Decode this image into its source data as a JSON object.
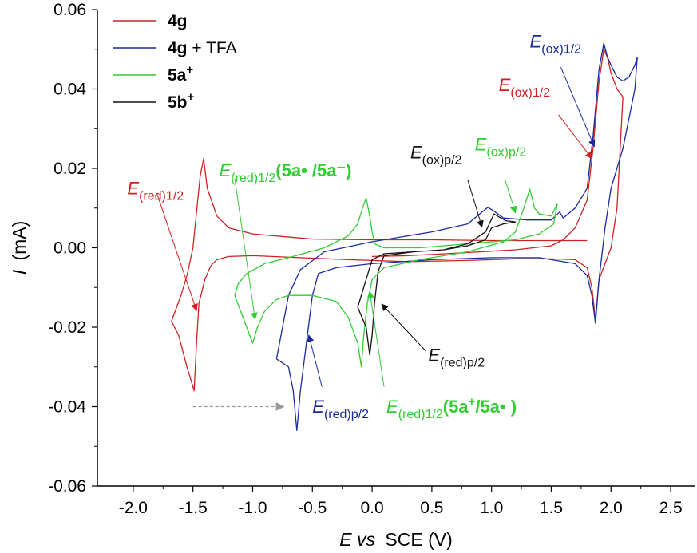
{
  "chart_data": {
    "type": "line",
    "xlabel": {
      "italic": "E vs",
      "normal": "SCE (V)"
    },
    "ylabel": {
      "italic": "I",
      "normal": "(mA)"
    },
    "xlim": [
      -2.3,
      2.7
    ],
    "ylim": [
      -0.06,
      0.06
    ],
    "xticks": [
      -2.0,
      -1.5,
      -1.0,
      -0.5,
      0.0,
      0.5,
      1.0,
      1.5,
      2.0,
      2.5
    ],
    "xtick_labels": [
      "-2.0",
      "-1.5",
      "-1.0",
      "-0.5",
      "0.0",
      "0.5",
      "1.0",
      "1.5",
      "2.0",
      "2.5"
    ],
    "yticks": [
      -0.06,
      -0.04,
      -0.02,
      0.0,
      0.02,
      0.04,
      0.06
    ],
    "ytick_labels": [
      "-0.06",
      "-0.04",
      "-0.02",
      "0.00",
      "0.02",
      "0.04",
      "0.06"
    ],
    "legend_position": "top-left",
    "series": [
      {
        "name": "4g",
        "legend": {
          "main": "4g",
          "sup": "",
          "suffix": ""
        },
        "color": "#cc2222",
        "points": [
          [
            0.0,
            -0.0022
          ],
          [
            0.3,
            -0.002
          ],
          [
            0.8,
            -0.0012
          ],
          [
            1.2,
            -0.0005
          ],
          [
            1.5,
            0.0005
          ],
          [
            1.6,
            0.002
          ],
          [
            1.7,
            0.005
          ],
          [
            1.8,
            0.012
          ],
          [
            1.85,
            0.025
          ],
          [
            1.9,
            0.042
          ],
          [
            1.94,
            0.05
          ],
          [
            1.97,
            0.048
          ],
          [
            2.0,
            0.044
          ],
          [
            2.05,
            0.04
          ],
          [
            2.1,
            0.038
          ],
          [
            2.1,
            0.038
          ],
          [
            2.05,
            0.01
          ],
          [
            2.0,
            0.0
          ],
          [
            1.95,
            -0.004
          ],
          [
            1.9,
            -0.008
          ],
          [
            1.87,
            -0.018
          ],
          [
            1.84,
            -0.01
          ],
          [
            1.8,
            -0.005
          ],
          [
            1.7,
            -0.003
          ],
          [
            1.5,
            -0.0028
          ],
          [
            1.2,
            -0.0028
          ],
          [
            0.8,
            -0.0032
          ],
          [
            0.3,
            -0.0035
          ],
          [
            -0.2,
            -0.003
          ],
          [
            -0.6,
            -0.0025
          ],
          [
            -1.0,
            -0.002
          ],
          [
            -1.2,
            -0.0022
          ],
          [
            -1.3,
            -0.003
          ],
          [
            -1.35,
            -0.0045
          ],
          [
            -1.4,
            -0.008
          ],
          [
            -1.45,
            -0.014
          ],
          [
            -1.47,
            -0.024
          ],
          [
            -1.49,
            -0.036
          ],
          [
            -1.55,
            -0.03
          ],
          [
            -1.62,
            -0.022
          ],
          [
            -1.68,
            -0.0185
          ],
          [
            -1.6,
            -0.012
          ],
          [
            -1.55,
            -0.007
          ],
          [
            -1.5,
            0.0
          ],
          [
            -1.47,
            0.009
          ],
          [
            -1.44,
            0.018
          ],
          [
            -1.41,
            0.0225
          ],
          [
            -1.38,
            0.015
          ],
          [
            -1.3,
            0.008
          ],
          [
            -1.2,
            0.005
          ],
          [
            -1.0,
            0.0035
          ],
          [
            -0.5,
            0.0022
          ],
          [
            0.0,
            0.002
          ],
          [
            0.5,
            0.002
          ],
          [
            1.0,
            0.0018
          ],
          [
            1.5,
            0.0018
          ],
          [
            1.8,
            0.0018
          ]
        ]
      },
      {
        "name": "4g + TFA",
        "legend": {
          "main": "4g",
          "sup": "",
          "suffix": " + TFA"
        },
        "color": "#1a2aa0",
        "points": [
          [
            -0.8,
            -0.028
          ],
          [
            -0.75,
            -0.02
          ],
          [
            -0.7,
            -0.012
          ],
          [
            -0.6,
            -0.0055
          ],
          [
            -0.4,
            -0.001
          ],
          [
            0.0,
            0.0015
          ],
          [
            0.5,
            0.004
          ],
          [
            0.8,
            0.006
          ],
          [
            0.9,
            0.0085
          ],
          [
            0.97,
            0.0102
          ],
          [
            1.03,
            0.009
          ],
          [
            1.1,
            0.0075
          ],
          [
            1.3,
            0.007
          ],
          [
            1.5,
            0.007
          ],
          [
            1.57,
            0.009
          ],
          [
            1.6,
            0.0075
          ],
          [
            1.7,
            0.01
          ],
          [
            1.8,
            0.015
          ],
          [
            1.85,
            0.028
          ],
          [
            1.9,
            0.045
          ],
          [
            1.94,
            0.0515
          ],
          [
            1.97,
            0.048
          ],
          [
            2.0,
            0.046
          ],
          [
            2.05,
            0.043
          ],
          [
            2.1,
            0.042
          ],
          [
            2.15,
            0.043
          ],
          [
            2.2,
            0.046
          ],
          [
            2.22,
            0.048
          ],
          [
            2.2,
            0.04
          ],
          [
            2.1,
            0.025
          ],
          [
            2.0,
            0.015
          ],
          [
            1.95,
            0.005
          ],
          [
            1.9,
            -0.008
          ],
          [
            1.87,
            -0.019
          ],
          [
            1.84,
            -0.012
          ],
          [
            1.8,
            -0.007
          ],
          [
            1.7,
            -0.004
          ],
          [
            1.4,
            -0.0025
          ],
          [
            1.0,
            -0.0025
          ],
          [
            0.5,
            -0.003
          ],
          [
            0.0,
            -0.004
          ],
          [
            -0.3,
            -0.005
          ],
          [
            -0.45,
            -0.0065
          ],
          [
            -0.5,
            -0.012
          ],
          [
            -0.55,
            -0.024
          ],
          [
            -0.6,
            -0.036
          ],
          [
            -0.63,
            -0.046
          ],
          [
            -0.66,
            -0.036
          ],
          [
            -0.7,
            -0.03
          ],
          [
            -0.75,
            -0.029
          ],
          [
            -0.8,
            -0.028
          ]
        ]
      },
      {
        "name": "5a+",
        "legend": {
          "main": "5a",
          "sup": "+",
          "suffix": ""
        },
        "color": "#33cc33",
        "points": [
          [
            -1.15,
            -0.012
          ],
          [
            -1.1,
            -0.016
          ],
          [
            -1.05,
            -0.02
          ],
          [
            -1.0,
            -0.024
          ],
          [
            -0.96,
            -0.02
          ],
          [
            -0.9,
            -0.016
          ],
          [
            -0.8,
            -0.013
          ],
          [
            -0.7,
            -0.012
          ],
          [
            -0.5,
            -0.012
          ],
          [
            -0.3,
            -0.0135
          ],
          [
            -0.2,
            -0.0175
          ],
          [
            -0.12,
            -0.024
          ],
          [
            -0.09,
            -0.03
          ],
          [
            -0.07,
            -0.022
          ],
          [
            -0.04,
            -0.014
          ],
          [
            0.0,
            -0.008
          ],
          [
            0.1,
            -0.005
          ],
          [
            0.4,
            -0.003
          ],
          [
            0.8,
            -0.001
          ],
          [
            1.1,
            0.0015
          ],
          [
            1.2,
            0.004
          ],
          [
            1.27,
            0.01
          ],
          [
            1.32,
            0.0148
          ],
          [
            1.36,
            0.01
          ],
          [
            1.4,
            0.0085
          ],
          [
            1.5,
            0.008
          ],
          [
            1.55,
            0.011
          ],
          [
            1.52,
            0.006
          ],
          [
            1.4,
            0.0035
          ],
          [
            1.2,
            0.002
          ],
          [
            0.8,
            0.001
          ],
          [
            0.4,
            0.0
          ],
          [
            0.1,
            0.0
          ],
          [
            0.02,
            0.001
          ],
          [
            0.0,
            0.004
          ],
          [
            -0.02,
            0.008
          ],
          [
            -0.05,
            0.0125
          ],
          [
            -0.08,
            0.01
          ],
          [
            -0.12,
            0.006
          ],
          [
            -0.2,
            0.003
          ],
          [
            -0.4,
            0.0
          ],
          [
            -0.7,
            -0.0025
          ],
          [
            -0.9,
            -0.004
          ],
          [
            -1.05,
            -0.0065
          ],
          [
            -1.12,
            -0.009
          ],
          [
            -1.15,
            -0.012
          ]
        ]
      },
      {
        "name": "5b+",
        "legend": {
          "main": "5b",
          "sup": "+",
          "suffix": ""
        },
        "color": "#111111",
        "points": [
          [
            0.35,
            -0.001
          ],
          [
            0.6,
            -0.0005
          ],
          [
            0.8,
            0.001
          ],
          [
            0.95,
            0.004
          ],
          [
            1.02,
            0.0085
          ],
          [
            1.06,
            0.0078
          ],
          [
            1.12,
            0.0068
          ],
          [
            1.2,
            0.0065
          ],
          [
            1.1,
            0.006
          ],
          [
            1.0,
            0.005
          ],
          [
            0.95,
            0.002
          ],
          [
            0.8,
            0.0005
          ],
          [
            0.6,
            -0.0005
          ],
          [
            0.35,
            -0.001
          ],
          [
            0.1,
            -0.002
          ],
          [
            0.05,
            -0.006
          ],
          [
            0.02,
            -0.014
          ],
          [
            0.0,
            -0.022
          ],
          [
            -0.02,
            -0.027
          ],
          [
            -0.05,
            -0.02
          ],
          [
            -0.12,
            -0.015
          ],
          [
            -0.05,
            -0.008
          ],
          [
            0.0,
            -0.003
          ],
          [
            0.1,
            -0.0015
          ],
          [
            0.35,
            -0.001
          ]
        ]
      }
    ],
    "annotations": [
      {
        "name": "annotation-ered12-4g",
        "color": "#cc2222",
        "base": "E",
        "sub": "(red)1/2",
        "extra": "",
        "extra_sup": "",
        "extra_tail": "",
        "text_at": [
          -2.05,
          0.0135
        ],
        "arrow_from": [
          -1.8,
          0.0135
        ],
        "arrow_to": [
          -1.47,
          -0.0158
        ]
      },
      {
        "name": "annotation-ered12-5a-radical",
        "color": "#33cc33",
        "base": "E",
        "sub": "(red)1/2",
        "extra": "(5a• /5a⁻)",
        "extra_sup": "",
        "extra_tail": "",
        "text_at": [
          -1.28,
          0.018
        ],
        "arrow_from": [
          -1.15,
          0.0175
        ],
        "arrow_to": [
          -0.98,
          -0.018
        ]
      },
      {
        "name": "annotation-ered12-5a-cation",
        "color": "#33cc33",
        "base": "E",
        "sub": "(red)1/2",
        "extra": "(5a",
        "extra_sup": "+",
        "extra_tail": "/5a• )",
        "text_at": [
          0.12,
          -0.0415
        ],
        "arrow_from": [
          0.1,
          -0.035
        ],
        "arrow_to": [
          -0.02,
          -0.011
        ]
      },
      {
        "name": "annotation-eredp2-4g-tfa",
        "color": "#1a2aa0",
        "base": "E",
        "sub": "(red)p/2",
        "extra": "",
        "extra_sup": "",
        "extra_tail": "",
        "text_at": [
          -0.5,
          -0.0415
        ],
        "arrow_from": [
          -0.42,
          -0.035
        ],
        "arrow_to": [
          -0.53,
          -0.022
        ]
      },
      {
        "name": "annotation-eredp2-5b",
        "color": "#111111",
        "base": "E",
        "sub": "(red)p/2",
        "extra": "",
        "extra_sup": "",
        "extra_tail": "",
        "text_at": [
          0.47,
          -0.0285
        ],
        "arrow_from": [
          0.45,
          -0.026
        ],
        "arrow_to": [
          0.08,
          -0.0142
        ]
      },
      {
        "name": "annotation-eoxp2-5b",
        "color": "#111111",
        "base": "E",
        "sub": "(ox)p/2",
        "extra": "",
        "extra_sup": "",
        "extra_tail": "",
        "text_at": [
          0.32,
          0.0225
        ],
        "arrow_from": [
          0.8,
          0.0172
        ],
        "arrow_to": [
          0.92,
          0.0052
        ]
      },
      {
        "name": "annotation-eoxp2-5a",
        "color": "#33cc33",
        "base": "E",
        "sub": "(ox)p/2",
        "extra": "",
        "extra_sup": "",
        "extra_tail": "",
        "text_at": [
          0.86,
          0.0245
        ],
        "arrow_from": [
          1.11,
          0.0175
        ],
        "arrow_to": [
          1.2,
          0.0088
        ]
      },
      {
        "name": "annotation-eox12-4g",
        "color": "#cc2222",
        "base": "E",
        "sub": "(ox)1/2",
        "extra": "",
        "extra_sup": "",
        "extra_tail": "",
        "text_at": [
          1.06,
          0.0395
        ],
        "arrow_from": [
          1.56,
          0.0335
        ],
        "arrow_to": [
          1.84,
          0.0225
        ]
      },
      {
        "name": "annotation-eox12-4g-tfa",
        "color": "#1a2aa0",
        "base": "E",
        "sub": "(ox)1/2",
        "extra": "",
        "extra_sup": "",
        "extra_tail": "",
        "text_at": [
          1.32,
          0.0505
        ],
        "arrow_from": [
          1.58,
          0.0455
        ],
        "arrow_to": [
          1.86,
          0.0255
        ]
      }
    ],
    "gray_arrow": {
      "from": [
        -1.5,
        -0.04
      ],
      "to": [
        -0.74,
        -0.04
      ],
      "color": "#999999"
    }
  }
}
